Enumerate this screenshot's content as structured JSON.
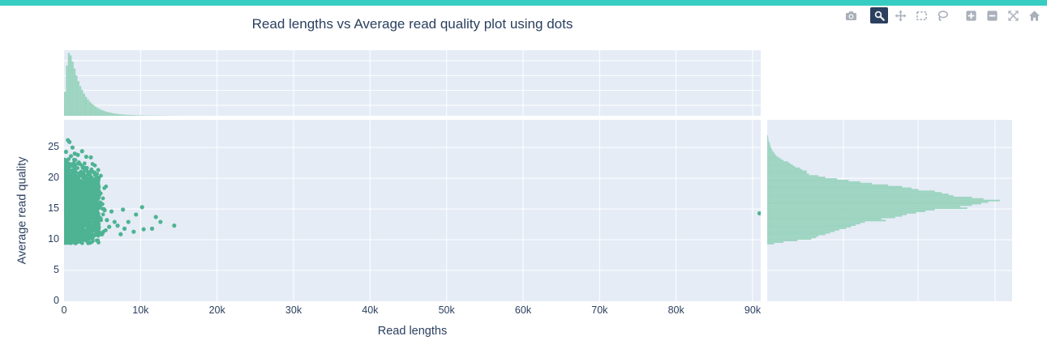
{
  "header": {
    "accent_bar_color": "#38cdc3"
  },
  "modebar": {
    "icon_color": "#a9b0ba",
    "active_bg": "#2b3f5e",
    "active_icon_color": "#eef1f6",
    "buttons": [
      {
        "name": "download-png",
        "active": false
      },
      {
        "name": "zoom",
        "active": true
      },
      {
        "name": "pan",
        "active": false
      },
      {
        "name": "box-select",
        "active": false
      },
      {
        "name": "lasso-select",
        "active": false
      },
      {
        "name": "zoom-in",
        "active": false
      },
      {
        "name": "zoom-out",
        "active": false
      },
      {
        "name": "autoscale",
        "active": false
      },
      {
        "name": "reset-axes",
        "active": false
      }
    ]
  },
  "chart_data": {
    "type": "scatter",
    "title": "Read lengths vs Average read quality plot using dots",
    "xlabel": "Read lengths",
    "ylabel": "Average read quality",
    "xlim": [
      0,
      91060
    ],
    "ylim": [
      0,
      29.5
    ],
    "grid": true,
    "legend_position": "none",
    "colors": {
      "dot": "#4db392",
      "hist_fill": "#9cd4c0",
      "panel_bg": "#e5ecf6",
      "grid": "#ffffff",
      "font": "#2a3f5f"
    },
    "x_ticks": [
      {
        "value": 0,
        "label": "0"
      },
      {
        "value": 10000,
        "label": "10k"
      },
      {
        "value": 20000,
        "label": "20k"
      },
      {
        "value": 30000,
        "label": "30k"
      },
      {
        "value": 40000,
        "label": "40k"
      },
      {
        "value": 50000,
        "label": "50k"
      },
      {
        "value": 60000,
        "label": "60k"
      },
      {
        "value": 70000,
        "label": "70k"
      },
      {
        "value": 80000,
        "label": "80k"
      },
      {
        "value": 90000,
        "label": "90k"
      }
    ],
    "y_ticks": [
      {
        "value": 0,
        "label": "0"
      },
      {
        "value": 5,
        "label": "5"
      },
      {
        "value": 10,
        "label": "10"
      },
      {
        "value": 15,
        "label": "15"
      },
      {
        "value": 20,
        "label": "20"
      },
      {
        "value": 25,
        "label": "25"
      }
    ],
    "scatter": {
      "cluster": {
        "count": 2200,
        "seed": 7,
        "uniform_frac": 0.34,
        "uniform_max_k": 4.55,
        "exp_scale_k": 1.35,
        "exp_max_k": 5.6,
        "y_mean": 15.2,
        "y_sd": 3.2,
        "y_min": 9.4,
        "y_max": 23.3,
        "dot_radius_px": 2.4
      },
      "high_quality_dots_k_q": [
        [
          0.5,
          26.2
        ],
        [
          0.7,
          25.9
        ],
        [
          1.1,
          25.0
        ],
        [
          0.25,
          24.3
        ],
        [
          1.4,
          24.0
        ],
        [
          2.35,
          24.4
        ],
        [
          1.8,
          23.8
        ],
        [
          0.9,
          23.6
        ],
        [
          2.9,
          23.5
        ],
        [
          3.5,
          23.4
        ]
      ],
      "outlier_dots_k_q": [
        [
          5.3,
          14.8
        ],
        [
          5.6,
          13.2
        ],
        [
          5.9,
          12.1
        ],
        [
          6.2,
          14.6
        ],
        [
          6.6,
          12.9
        ],
        [
          7.0,
          12.3
        ],
        [
          7.4,
          10.9
        ],
        [
          7.7,
          14.9
        ],
        [
          7.9,
          11.8
        ],
        [
          8.4,
          12.9
        ],
        [
          9.1,
          11.3
        ],
        [
          9.4,
          14.1
        ],
        [
          10.2,
          15.3
        ],
        [
          10.4,
          11.7
        ],
        [
          11.5,
          11.8
        ],
        [
          12.0,
          13.7
        ],
        [
          12.6,
          12.9
        ],
        [
          14.4,
          12.3
        ],
        [
          90.9,
          14.3
        ]
      ]
    },
    "marginal_top_histogram": {
      "axis": "read_length",
      "bin_width": 250,
      "start": 0,
      "max_height_frac": 0.96,
      "gridlines_frac_from_top": [
        0.16,
        0.387,
        0.613,
        0.84
      ],
      "values_pct_of_max": [
        38,
        80,
        100,
        96,
        86,
        75,
        64,
        55,
        47,
        41,
        35,
        30,
        26,
        22.5,
        19.5,
        17,
        14.5,
        12.5,
        11,
        9.5,
        8.3,
        7.2,
        6.3,
        5.5,
        4.8,
        4.2,
        3.6,
        3.2,
        2.8,
        2.4,
        2.1,
        1.9,
        1.6,
        1.4,
        1.3,
        1.1,
        1.0,
        0.9,
        0.8,
        0.7,
        0.7,
        0.6,
        0.5,
        0.5,
        0.4,
        0.4,
        0.4,
        0.3,
        0.3,
        0.3,
        0.2,
        0.2,
        0.2,
        0.2,
        0.1,
        0.1,
        0.1,
        0.1,
        0.1,
        0.1
      ]
    },
    "marginal_right_histogram": {
      "axis": "average_read_quality",
      "bin_width": 0.25,
      "start": 9.25,
      "max_width_frac": 0.95,
      "gridlines_frac_from_left": [
        0.311,
        0.616,
        0.93
      ],
      "values_pct_of_max": [
        3,
        7,
        13,
        19,
        21,
        22,
        25,
        27,
        29,
        31,
        34,
        36,
        38,
        40,
        42,
        51,
        49,
        55,
        58,
        60,
        64,
        68,
        72,
        86,
        83,
        88,
        92,
        95,
        100,
        93,
        88,
        80,
        78,
        75,
        72,
        65,
        62,
        58,
        52,
        45,
        40,
        35,
        30,
        25,
        22,
        18,
        17,
        17,
        15,
        14,
        12,
        11,
        10,
        9,
        7,
        6,
        5,
        4,
        3.5,
        3,
        2.5,
        2,
        1.8,
        1.5,
        1.2,
        1.2,
        0.8,
        0.6,
        0.5,
        0.4,
        0.3
      ]
    }
  }
}
